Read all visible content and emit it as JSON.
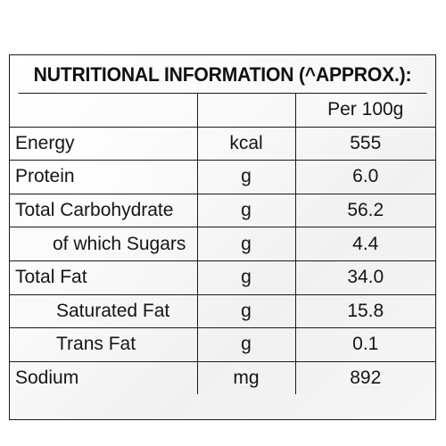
{
  "title": "NUTRITIONAL INFORMATION (^APPROX.):",
  "header": {
    "name": "",
    "unit": "",
    "value": "Per 100g"
  },
  "rows": [
    {
      "name": "Energy",
      "unit": "kcal",
      "value": "555"
    },
    {
      "name": "Protein",
      "unit": "g",
      "value": "6.0"
    },
    {
      "name": "Total Carbohydrate",
      "unit": "g",
      "value": "56.2"
    },
    {
      "name": "of which Sugars",
      "unit": "g",
      "value": "4.4"
    },
    {
      "name": "Total Fat",
      "unit": "g",
      "value": "34.0"
    },
    {
      "name": "Saturated Fat",
      "unit": "g",
      "value": "15.8"
    },
    {
      "name": "Trans Fat",
      "unit": "g",
      "value": "0.1"
    },
    {
      "name": "Sodium",
      "unit": "mg",
      "value": "892"
    }
  ],
  "colors": {
    "border": "#1a1a1a",
    "text": "#151515",
    "background": "#ffffff"
  }
}
